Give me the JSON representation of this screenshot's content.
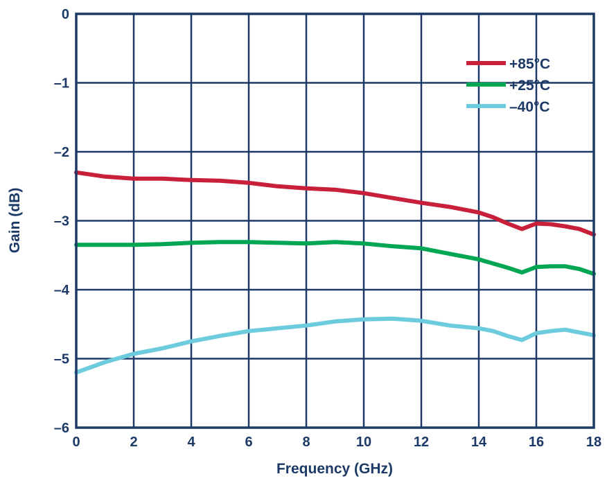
{
  "chart_data": {
    "type": "line",
    "title": "",
    "xlabel": "Frequency (GHz)",
    "ylabel": "Gain (dB)",
    "xlim": [
      0,
      18
    ],
    "ylim": [
      -6,
      0
    ],
    "xticks": [
      "0",
      "2",
      "4",
      "6",
      "8",
      "10",
      "12",
      "14",
      "16",
      "18"
    ],
    "yticks": [
      "0",
      "–1",
      "–2",
      "–3",
      "–4",
      "–5",
      "–6"
    ],
    "grid": true,
    "legend_position": "top-right",
    "colors": {
      "axis": "#1d3966",
      "grid": "#1d3966"
    },
    "series": [
      {
        "name": "+85°C",
        "color": "#c8203a",
        "x": [
          0,
          1,
          2,
          3,
          4,
          5,
          6,
          7,
          8,
          9,
          10,
          11,
          12,
          13,
          14,
          14.5,
          15,
          15.5,
          16,
          16.5,
          17,
          17.5,
          18
        ],
        "y": [
          -2.3,
          -2.36,
          -2.39,
          -2.39,
          -2.41,
          -2.42,
          -2.45,
          -2.5,
          -2.53,
          -2.55,
          -2.6,
          -2.67,
          -2.74,
          -2.8,
          -2.88,
          -2.95,
          -3.04,
          -3.12,
          -3.04,
          -3.05,
          -3.08,
          -3.12,
          -3.2
        ]
      },
      {
        "name": "+25°C",
        "color": "#00a651",
        "x": [
          0,
          1,
          2,
          3,
          4,
          5,
          6,
          7,
          8,
          9,
          10,
          11,
          12,
          13,
          14,
          14.5,
          15,
          15.5,
          16,
          16.5,
          17,
          17.5,
          18
        ],
        "y": [
          -3.35,
          -3.35,
          -3.35,
          -3.34,
          -3.32,
          -3.31,
          -3.31,
          -3.32,
          -3.33,
          -3.31,
          -3.33,
          -3.37,
          -3.4,
          -3.48,
          -3.56,
          -3.62,
          -3.68,
          -3.75,
          -3.67,
          -3.66,
          -3.66,
          -3.7,
          -3.77
        ]
      },
      {
        "name": "–40°C",
        "color": "#6ccbdc",
        "x": [
          0,
          1,
          2,
          3,
          4,
          5,
          6,
          7,
          8,
          9,
          10,
          11,
          12,
          13,
          14,
          14.5,
          15,
          15.5,
          16,
          16.5,
          17,
          17.5,
          18
        ],
        "y": [
          -5.2,
          -5.05,
          -4.93,
          -4.85,
          -4.75,
          -4.67,
          -4.6,
          -4.56,
          -4.52,
          -4.46,
          -4.43,
          -4.42,
          -4.45,
          -4.52,
          -4.56,
          -4.6,
          -4.67,
          -4.73,
          -4.63,
          -4.6,
          -4.58,
          -4.62,
          -4.66
        ]
      }
    ]
  }
}
